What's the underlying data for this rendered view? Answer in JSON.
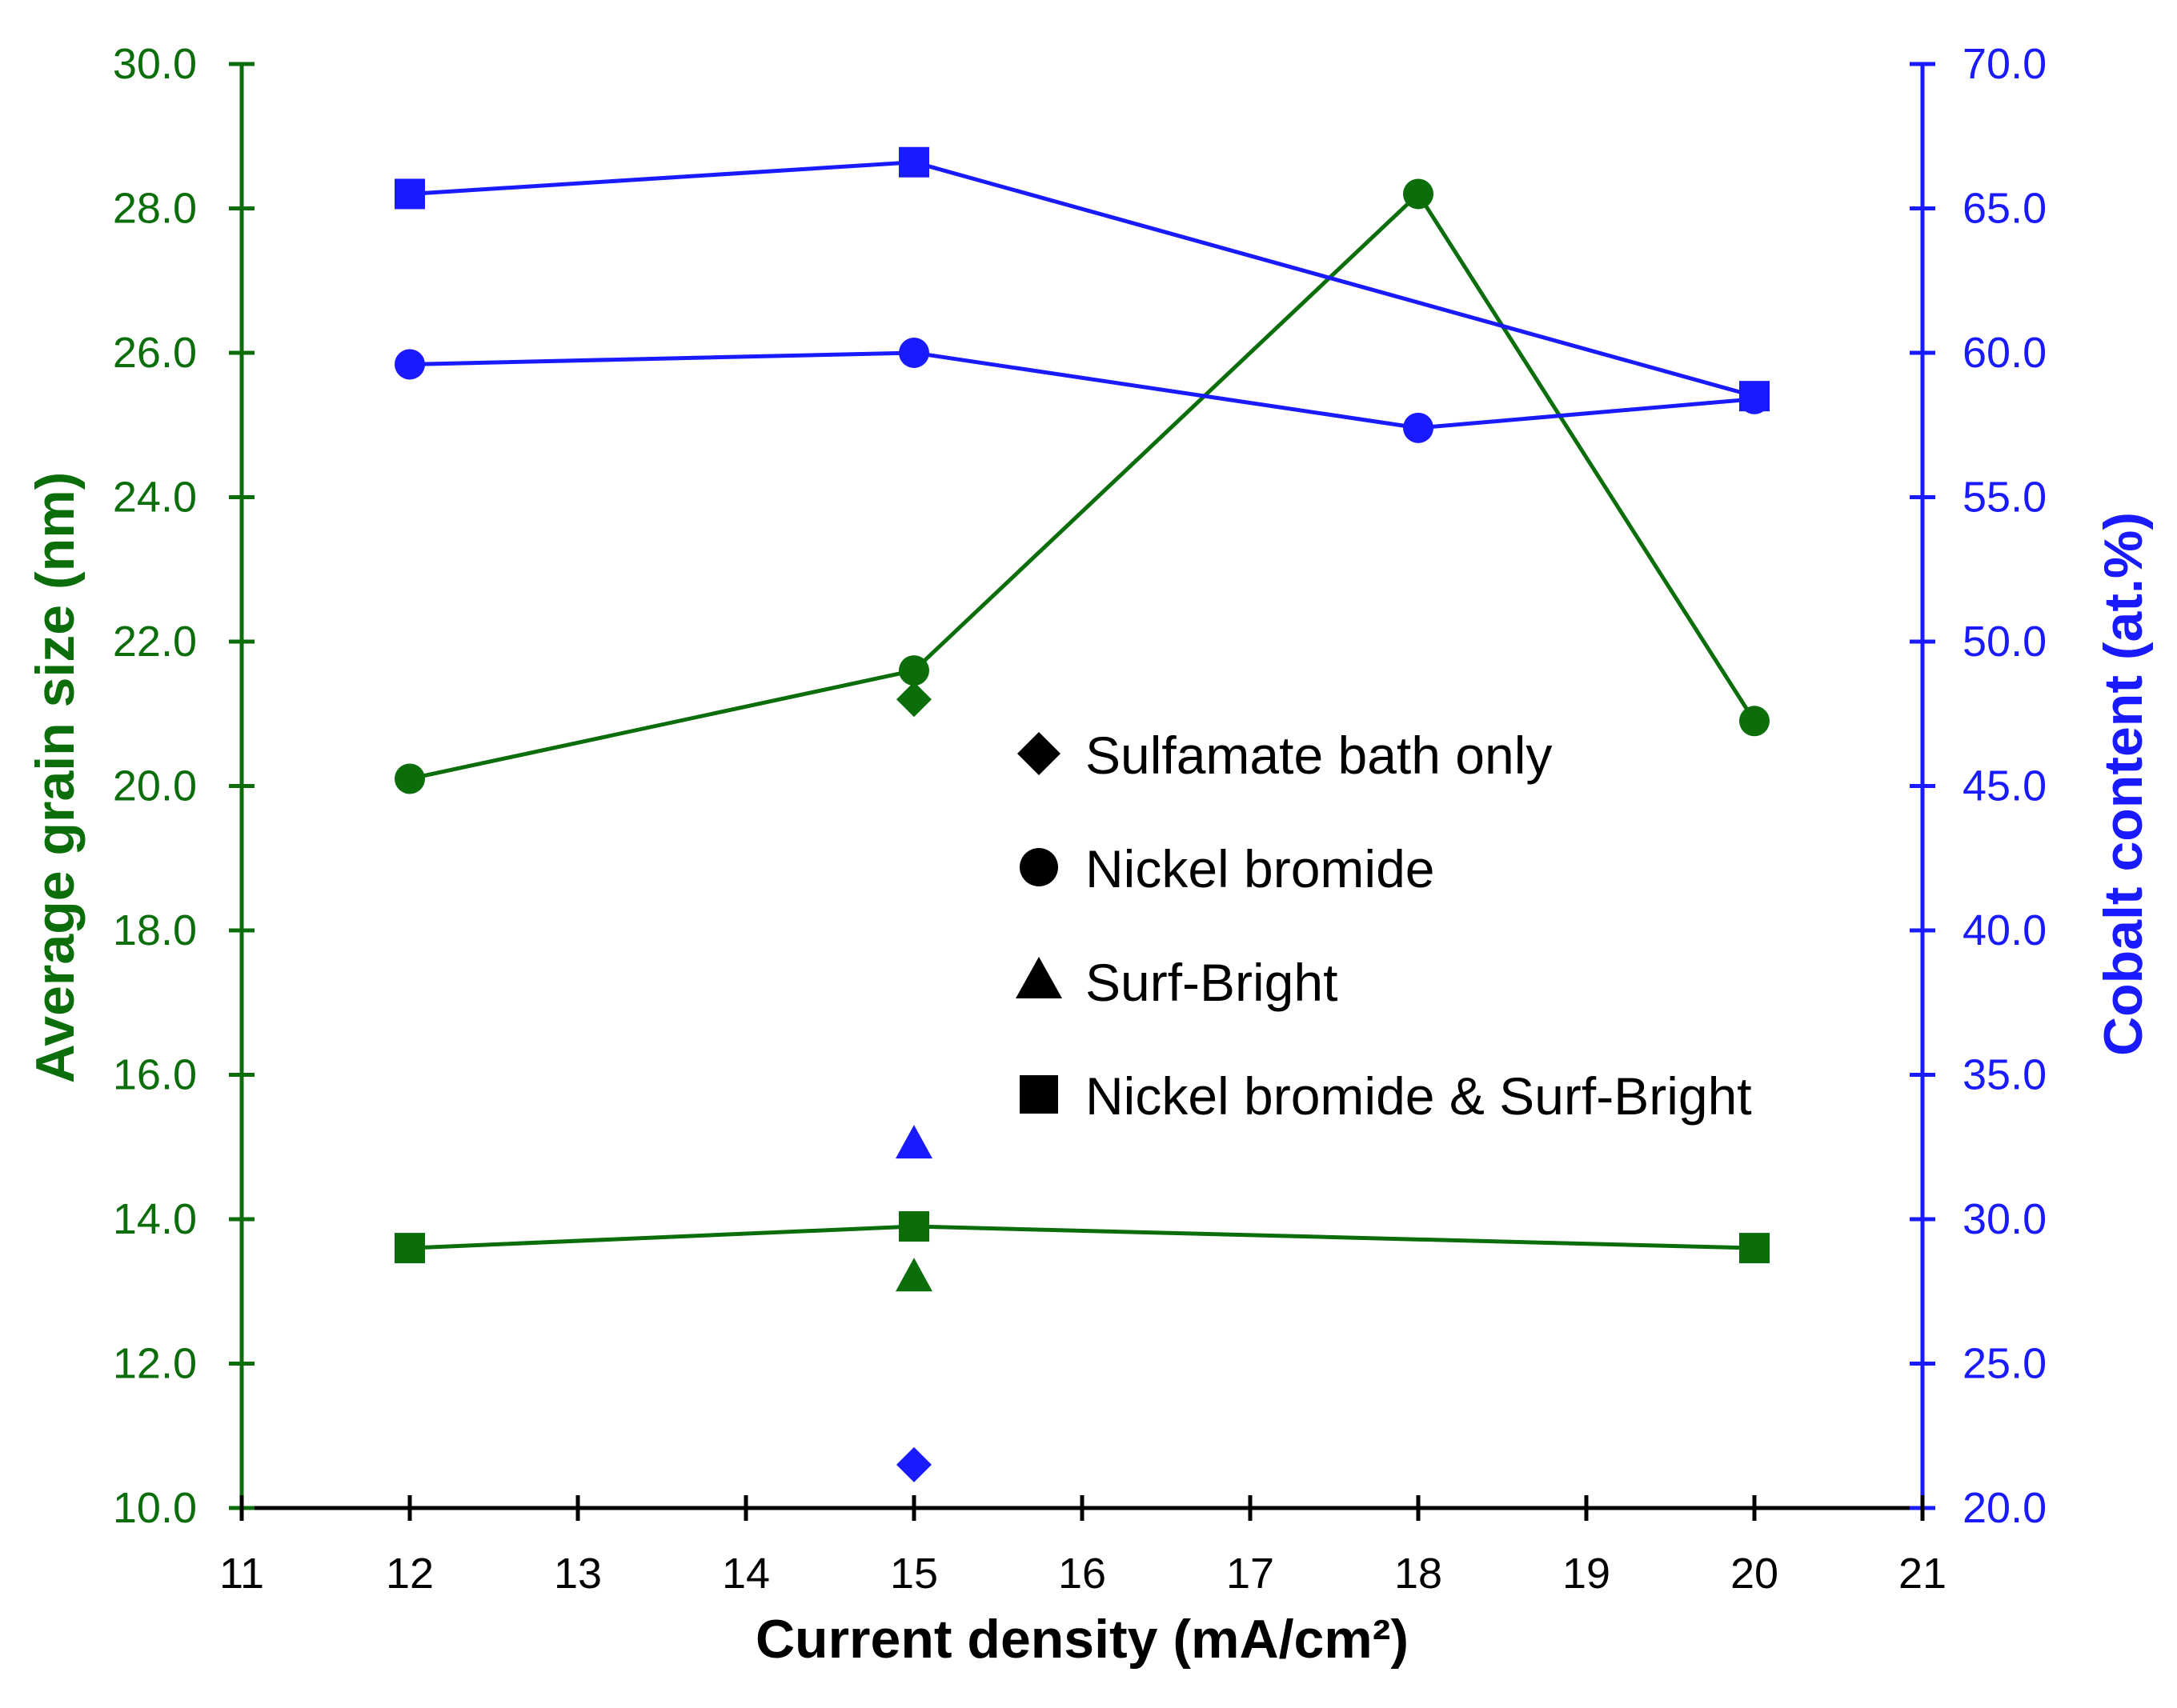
{
  "chart_data": {
    "type": "line",
    "xlabel": "Current density (mA/cm²)",
    "ylabel_left": "Average grain size (nm)",
    "ylabel_right": "Cobalt content (at.%)",
    "xlim": [
      11,
      21
    ],
    "ylim_left": [
      10.0,
      30.0
    ],
    "ylim_right": [
      20.0,
      70.0
    ],
    "x_ticks": [
      "11",
      "12",
      "13",
      "14",
      "15",
      "16",
      "17",
      "18",
      "19",
      "20",
      "21"
    ],
    "y_left_ticks": [
      "10.0",
      "12.0",
      "14.0",
      "16.0",
      "18.0",
      "20.0",
      "22.0",
      "24.0",
      "26.0",
      "28.0",
      "30.0"
    ],
    "y_right_ticks": [
      "20.0",
      "25.0",
      "30.0",
      "35.0",
      "40.0",
      "45.0",
      "50.0",
      "55.0",
      "60.0",
      "65.0",
      "70.0"
    ],
    "colors": {
      "grain_size": "#0b6e0b",
      "cobalt": "#1a1aff",
      "legend": "#000000"
    },
    "legend": [
      {
        "label": "Sulfamate bath only",
        "marker": "diamond"
      },
      {
        "label": "Nickel bromide",
        "marker": "circle"
      },
      {
        "label": "Surf-Bright",
        "marker": "triangle"
      },
      {
        "label": "Nickel bromide & Surf-Bright",
        "marker": "square"
      }
    ],
    "series": [
      {
        "name": "Nickel bromide - grain size",
        "axis": "left",
        "color": "grain_size",
        "marker": "circle",
        "line": true,
        "x": [
          12,
          15,
          18,
          20
        ],
        "y": [
          20.1,
          21.6,
          28.2,
          20.9
        ]
      },
      {
        "name": "Nickel bromide & Surf-Bright - grain size",
        "axis": "left",
        "color": "grain_size",
        "marker": "square",
        "line": true,
        "x": [
          12,
          15,
          20
        ],
        "y": [
          13.6,
          13.9,
          13.6
        ]
      },
      {
        "name": "Sulfamate bath only - grain size",
        "axis": "left",
        "color": "grain_size",
        "marker": "diamond",
        "line": false,
        "x": [
          15
        ],
        "y": [
          21.2
        ]
      },
      {
        "name": "Surf-Bright - grain size",
        "axis": "left",
        "color": "grain_size",
        "marker": "triangle",
        "line": false,
        "x": [
          15
        ],
        "y": [
          13.2
        ]
      },
      {
        "name": "Nickel bromide & Surf-Bright - cobalt",
        "axis": "right",
        "color": "cobalt",
        "marker": "square",
        "line": true,
        "x": [
          12,
          15,
          20
        ],
        "y": [
          65.5,
          66.6,
          58.5
        ]
      },
      {
        "name": "Nickel bromide - cobalt",
        "axis": "right",
        "color": "cobalt",
        "marker": "circle",
        "line": true,
        "x": [
          12,
          15,
          18,
          20
        ],
        "y": [
          59.6,
          60.0,
          57.4,
          58.4
        ]
      },
      {
        "name": "Surf-Bright - cobalt",
        "axis": "right",
        "color": "cobalt",
        "marker": "triangle",
        "line": false,
        "x": [
          15
        ],
        "y": [
          32.6
        ]
      },
      {
        "name": "Sulfamate bath only - cobalt",
        "axis": "right",
        "color": "cobalt",
        "marker": "diamond",
        "line": false,
        "x": [
          15
        ],
        "y": [
          21.5
        ]
      }
    ]
  }
}
